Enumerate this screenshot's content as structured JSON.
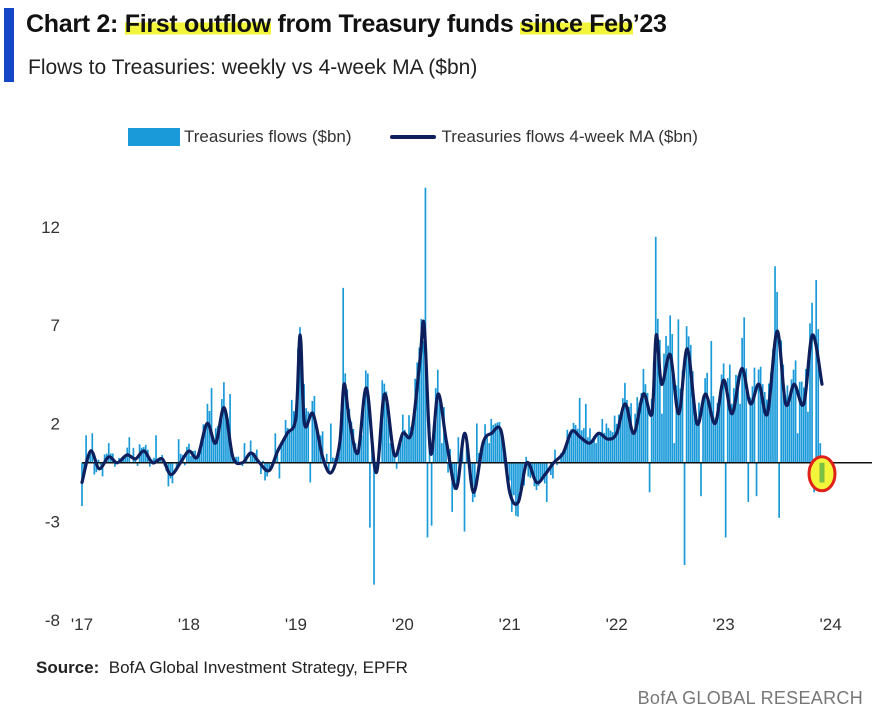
{
  "header": {
    "title_prefix": "Chart 2: ",
    "title_hl1": "First outflow",
    "title_mid": " from Treasury funds ",
    "title_hl2": "since Feb",
    "title_suffix": "’23",
    "subtitle": "Flows to Treasuries: weekly vs 4-week MA ($bn)"
  },
  "legend": {
    "bars_label": "Treasuries flows ($bn)",
    "line_label": "Treasuries flows 4-week MA ($bn)"
  },
  "source": {
    "label": "Source:",
    "text": "BofA Global Investment Strategy, EPFR"
  },
  "footer": {
    "brand": "BofA GLOBAL RESEARCH"
  },
  "colors": {
    "bars": "#1a9ad9",
    "line": "#0d1f5c",
    "highlight": "#f2f53a",
    "marker_fill": "#7bc043",
    "marker_ring": "#e0201b",
    "accent": "#1446c8"
  },
  "chart_data": {
    "type": "bar",
    "ylim": [
      -8,
      15
    ],
    "yticks": [
      12,
      7,
      2,
      -3,
      -8
    ],
    "xlim": [
      2017.0,
      2023.92
    ],
    "xticks": [
      {
        "x": 2017,
        "label": "'17"
      },
      {
        "x": 2018,
        "label": "'18"
      },
      {
        "x": 2019,
        "label": "'19"
      },
      {
        "x": 2020,
        "label": "'20"
      },
      {
        "x": 2021,
        "label": "'21"
      },
      {
        "x": 2022,
        "label": "'22"
      },
      {
        "x": 2023,
        "label": "'23"
      },
      {
        "x": 2024,
        "label": "'24"
      }
    ],
    "anchors": [
      [
        2017.0,
        -1.0
      ],
      [
        2017.08,
        0.6
      ],
      [
        2017.16,
        -0.3
      ],
      [
        2017.25,
        0.3
      ],
      [
        2017.33,
        0.0
      ],
      [
        2017.42,
        0.4
      ],
      [
        2017.5,
        0.2
      ],
      [
        2017.58,
        0.6
      ],
      [
        2017.66,
        0.0
      ],
      [
        2017.75,
        0.2
      ],
      [
        2017.83,
        -0.6
      ],
      [
        2017.92,
        0.0
      ],
      [
        2018.0,
        0.6
      ],
      [
        2018.08,
        0.3
      ],
      [
        2018.17,
        2.0
      ],
      [
        2018.25,
        1.0
      ],
      [
        2018.33,
        2.8
      ],
      [
        2018.41,
        0.3
      ],
      [
        2018.5,
        0.0
      ],
      [
        2018.58,
        0.5
      ],
      [
        2018.66,
        0.0
      ],
      [
        2018.75,
        -0.4
      ],
      [
        2018.83,
        0.6
      ],
      [
        2018.92,
        1.5
      ],
      [
        2019.0,
        2.3
      ],
      [
        2019.04,
        6.5
      ],
      [
        2019.08,
        2.0
      ],
      [
        2019.16,
        2.5
      ],
      [
        2019.25,
        0.3
      ],
      [
        2019.33,
        -0.5
      ],
      [
        2019.41,
        1.0
      ],
      [
        2019.45,
        4.0
      ],
      [
        2019.5,
        2.2
      ],
      [
        2019.58,
        0.5
      ],
      [
        2019.66,
        3.8
      ],
      [
        2019.75,
        -0.5
      ],
      [
        2019.83,
        3.5
      ],
      [
        2019.92,
        0.4
      ],
      [
        2020.0,
        1.5
      ],
      [
        2020.08,
        1.5
      ],
      [
        2020.16,
        5.2
      ],
      [
        2020.2,
        7.0
      ],
      [
        2020.26,
        0.5
      ],
      [
        2020.33,
        3.5
      ],
      [
        2020.41,
        1.0
      ],
      [
        2020.5,
        -1.3
      ],
      [
        2020.58,
        1.5
      ],
      [
        2020.66,
        -1.5
      ],
      [
        2020.75,
        1.0
      ],
      [
        2020.83,
        1.5
      ],
      [
        2020.92,
        1.6
      ],
      [
        2021.0,
        -1.5
      ],
      [
        2021.08,
        -2.0
      ],
      [
        2021.16,
        0.0
      ],
      [
        2021.25,
        -1.0
      ],
      [
        2021.33,
        -0.6
      ],
      [
        2021.41,
        0.0
      ],
      [
        2021.5,
        0.5
      ],
      [
        2021.58,
        1.6
      ],
      [
        2021.66,
        1.3
      ],
      [
        2021.75,
        1.0
      ],
      [
        2021.83,
        1.5
      ],
      [
        2021.92,
        1.2
      ],
      [
        2022.0,
        1.5
      ],
      [
        2022.08,
        3.0
      ],
      [
        2022.16,
        1.5
      ],
      [
        2022.25,
        3.5
      ],
      [
        2022.33,
        2.5
      ],
      [
        2022.37,
        6.5
      ],
      [
        2022.42,
        4.0
      ],
      [
        2022.5,
        5.5
      ],
      [
        2022.58,
        2.5
      ],
      [
        2022.66,
        5.8
      ],
      [
        2022.75,
        2.0
      ],
      [
        2022.83,
        3.5
      ],
      [
        2022.92,
        2.0
      ],
      [
        2023.0,
        4.2
      ],
      [
        2023.08,
        2.5
      ],
      [
        2023.17,
        4.8
      ],
      [
        2023.25,
        3.0
      ],
      [
        2023.33,
        4.0
      ],
      [
        2023.41,
        2.5
      ],
      [
        2023.5,
        6.7
      ],
      [
        2023.58,
        3.0
      ],
      [
        2023.66,
        4.0
      ],
      [
        2023.75,
        3.0
      ],
      [
        2023.83,
        6.5
      ],
      [
        2023.92,
        4.0
      ]
    ],
    "bar_samples": [
      [
        2017.0,
        -2.2
      ],
      [
        2017.03,
        1.4
      ],
      [
        2017.09,
        1.5
      ],
      [
        2017.12,
        -0.6
      ],
      [
        2017.25,
        1.0
      ],
      [
        2017.45,
        1.3
      ],
      [
        2017.58,
        0.8
      ],
      [
        2017.7,
        1.4
      ],
      [
        2017.8,
        -1.2
      ],
      [
        2017.9,
        1.2
      ],
      [
        2018.12,
        1.2
      ],
      [
        2018.18,
        3.0
      ],
      [
        2018.22,
        3.8
      ],
      [
        2018.32,
        4.1
      ],
      [
        2018.38,
        3.5
      ],
      [
        2018.52,
        1.0
      ],
      [
        2018.62,
        0.5
      ],
      [
        2018.72,
        -0.9
      ],
      [
        2018.8,
        1.5
      ],
      [
        2018.85,
        -0.8
      ],
      [
        2018.96,
        3.2
      ],
      [
        2019.04,
        6.9
      ],
      [
        2019.08,
        4.0
      ],
      [
        2019.14,
        -1.0
      ],
      [
        2019.18,
        3.4
      ],
      [
        2019.25,
        1.6
      ],
      [
        2019.32,
        2.0
      ],
      [
        2019.4,
        0.5
      ],
      [
        2019.45,
        8.9
      ],
      [
        2019.55,
        1.0
      ],
      [
        2019.62,
        1.4
      ],
      [
        2019.66,
        4.7
      ],
      [
        2019.7,
        -3.3
      ],
      [
        2019.74,
        -6.2
      ],
      [
        2019.78,
        0.0
      ],
      [
        2019.81,
        4.2
      ],
      [
        2019.88,
        1.0
      ],
      [
        2019.95,
        -0.3
      ],
      [
        2020.1,
        1.8
      ],
      [
        2020.2,
        6.2
      ],
      [
        2020.22,
        14.0
      ],
      [
        2020.24,
        -3.8
      ],
      [
        2020.27,
        -3.2
      ],
      [
        2020.3,
        3.8
      ],
      [
        2020.36,
        1.0
      ],
      [
        2020.42,
        -0.5
      ],
      [
        2020.47,
        -2.5
      ],
      [
        2020.52,
        1.3
      ],
      [
        2020.58,
        -3.5
      ],
      [
        2020.66,
        -2.0
      ],
      [
        2020.7,
        2.0
      ],
      [
        2020.8,
        1.0
      ],
      [
        2020.86,
        2.0
      ],
      [
        2020.92,
        1.7
      ],
      [
        2020.98,
        -0.6
      ],
      [
        2021.0,
        -0.9
      ],
      [
        2021.02,
        -2.5
      ],
      [
        2021.06,
        -2.7
      ],
      [
        2021.12,
        -1.0
      ],
      [
        2021.18,
        -0.7
      ],
      [
        2021.24,
        -1.2
      ],
      [
        2021.34,
        -2.0
      ],
      [
        2021.4,
        -0.8
      ],
      [
        2021.48,
        0.5
      ],
      [
        2021.55,
        1.2
      ],
      [
        2021.66,
        3.3
      ],
      [
        2021.72,
        3.0
      ],
      [
        2021.8,
        1.0
      ],
      [
        2021.9,
        2.0
      ],
      [
        2021.98,
        2.4
      ],
      [
        2022.1,
        3.2
      ],
      [
        2022.18,
        2.5
      ],
      [
        2022.26,
        4.0
      ],
      [
        2022.31,
        -1.5
      ],
      [
        2022.37,
        11.5
      ],
      [
        2022.42,
        2.5
      ],
      [
        2022.5,
        7.5
      ],
      [
        2022.54,
        1.0
      ],
      [
        2022.58,
        7.3
      ],
      [
        2022.64,
        -5.2
      ],
      [
        2022.7,
        6.0
      ],
      [
        2022.74,
        3.0
      ],
      [
        2022.79,
        -1.7
      ],
      [
        2022.88,
        6.2
      ],
      [
        2022.96,
        3.4
      ],
      [
        2023.02,
        -3.8
      ],
      [
        2023.06,
        5.0
      ],
      [
        2023.15,
        3.0
      ],
      [
        2023.2,
        7.4
      ],
      [
        2023.24,
        -2.0
      ],
      [
        2023.3,
        -1.7
      ],
      [
        2023.37,
        4.0
      ],
      [
        2023.44,
        4.6
      ],
      [
        2023.48,
        10.0
      ],
      [
        2023.52,
        -2.8
      ],
      [
        2023.55,
        5.0
      ],
      [
        2023.62,
        3.0
      ],
      [
        2023.7,
        1.5
      ],
      [
        2023.78,
        2.6
      ],
      [
        2023.84,
        -1.5
      ],
      [
        2023.86,
        9.3
      ],
      [
        2023.88,
        6.8
      ],
      [
        2023.9,
        1.0
      ],
      [
        2023.92,
        -1.0
      ]
    ],
    "last_point": {
      "x": 2023.92,
      "y": -1.0
    }
  }
}
